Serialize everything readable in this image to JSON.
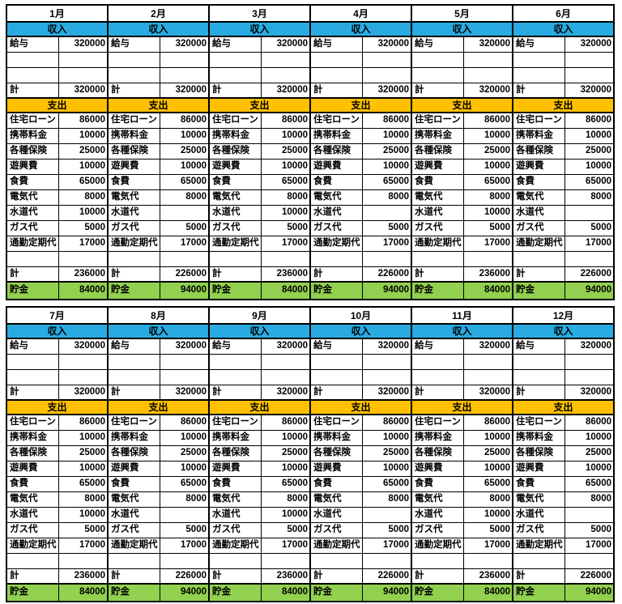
{
  "colors": {
    "income_band": "#29ABE2",
    "expense_band": "#FFC000",
    "savings_band": "#92D050",
    "grid_border": "#000000",
    "cell_background": "#FFFFFF",
    "text": "#000000"
  },
  "section_labels": {
    "income": "収入",
    "expense": "支出",
    "total": "計",
    "savings": "貯金"
  },
  "income_item_labels": [
    "給与",
    "",
    ""
  ],
  "expense_item_labels": [
    "住宅ローン",
    "携帯料金",
    "各種保険",
    "遊興費",
    "食費",
    "電気代",
    "水道代",
    "ガス代",
    "通勤定期代",
    ""
  ],
  "months": [
    {
      "name": "1月",
      "income_values": [
        "320000",
        "",
        ""
      ],
      "income_total": "320000",
      "expense_values": [
        "86000",
        "10000",
        "25000",
        "10000",
        "65000",
        "8000",
        "10000",
        "5000",
        "17000",
        ""
      ],
      "expense_total": "236000",
      "savings": "84000"
    },
    {
      "name": "2月",
      "income_values": [
        "320000",
        "",
        ""
      ],
      "income_total": "320000",
      "expense_values": [
        "86000",
        "10000",
        "25000",
        "10000",
        "65000",
        "8000",
        "",
        "5000",
        "17000",
        ""
      ],
      "expense_total": "226000",
      "savings": "94000"
    },
    {
      "name": "3月",
      "income_values": [
        "320000",
        "",
        ""
      ],
      "income_total": "320000",
      "expense_values": [
        "86000",
        "10000",
        "25000",
        "10000",
        "65000",
        "8000",
        "10000",
        "5000",
        "17000",
        ""
      ],
      "expense_total": "236000",
      "savings": "84000"
    },
    {
      "name": "4月",
      "income_values": [
        "320000",
        "",
        ""
      ],
      "income_total": "320000",
      "expense_values": [
        "86000",
        "10000",
        "25000",
        "10000",
        "65000",
        "8000",
        "",
        "5000",
        "17000",
        ""
      ],
      "expense_total": "226000",
      "savings": "94000"
    },
    {
      "name": "5月",
      "income_values": [
        "320000",
        "",
        ""
      ],
      "income_total": "320000",
      "expense_values": [
        "86000",
        "10000",
        "25000",
        "10000",
        "65000",
        "8000",
        "10000",
        "5000",
        "17000",
        ""
      ],
      "expense_total": "236000",
      "savings": "84000"
    },
    {
      "name": "6月",
      "income_values": [
        "320000",
        "",
        ""
      ],
      "income_total": "320000",
      "expense_values": [
        "86000",
        "10000",
        "25000",
        "10000",
        "65000",
        "8000",
        "",
        "5000",
        "17000",
        ""
      ],
      "expense_total": "226000",
      "savings": "94000"
    },
    {
      "name": "7月",
      "income_values": [
        "320000",
        "",
        ""
      ],
      "income_total": "320000",
      "expense_values": [
        "86000",
        "10000",
        "25000",
        "10000",
        "65000",
        "8000",
        "10000",
        "5000",
        "17000",
        ""
      ],
      "expense_total": "236000",
      "savings": "84000"
    },
    {
      "name": "8月",
      "income_values": [
        "320000",
        "",
        ""
      ],
      "income_total": "320000",
      "expense_values": [
        "86000",
        "10000",
        "25000",
        "10000",
        "65000",
        "8000",
        "",
        "5000",
        "17000",
        ""
      ],
      "expense_total": "226000",
      "savings": "94000"
    },
    {
      "name": "9月",
      "income_values": [
        "320000",
        "",
        ""
      ],
      "income_total": "320000",
      "expense_values": [
        "86000",
        "10000",
        "25000",
        "10000",
        "65000",
        "8000",
        "10000",
        "5000",
        "17000",
        ""
      ],
      "expense_total": "236000",
      "savings": "84000"
    },
    {
      "name": "10月",
      "income_values": [
        "320000",
        "",
        ""
      ],
      "income_total": "320000",
      "expense_values": [
        "86000",
        "10000",
        "25000",
        "10000",
        "65000",
        "8000",
        "",
        "5000",
        "17000",
        ""
      ],
      "expense_total": "226000",
      "savings": "94000"
    },
    {
      "name": "11月",
      "income_values": [
        "320000",
        "",
        ""
      ],
      "income_total": "320000",
      "expense_values": [
        "86000",
        "10000",
        "25000",
        "10000",
        "65000",
        "8000",
        "10000",
        "5000",
        "17000",
        ""
      ],
      "expense_total": "236000",
      "savings": "84000"
    },
    {
      "name": "12月",
      "income_values": [
        "320000",
        "",
        ""
      ],
      "income_total": "320000",
      "expense_values": [
        "86000",
        "10000",
        "25000",
        "10000",
        "65000",
        "8000",
        "",
        "5000",
        "17000",
        ""
      ],
      "expense_total": "226000",
      "savings": "94000"
    }
  ]
}
